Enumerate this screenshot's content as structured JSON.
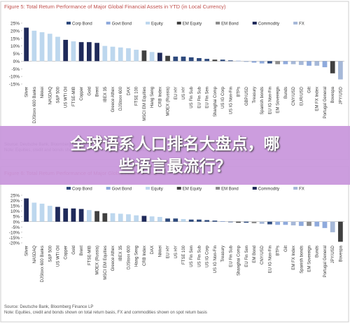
{
  "chart_data": [
    {
      "type": "bar",
      "title": "Figure 5: Total Return Performance of Major Global Financial Assets in YTD (in Local Currency)",
      "legend": [
        {
          "name": "Corp Bond",
          "color": "#2e4a7d"
        },
        {
          "name": "Govt Bond",
          "color": "#8faadc"
        },
        {
          "name": "Equity",
          "color": "#bdd7ee"
        },
        {
          "name": "EM Equity",
          "color": "#404040"
        },
        {
          "name": "EM Bond",
          "color": "#8c8c8c"
        },
        {
          "name": "Commodity",
          "color": "#1f2a5a"
        },
        {
          "name": "FX",
          "color": "#a6b8d8"
        }
      ],
      "categories": [
        "Silver",
        "DJStoxx 600 Banks",
        "Nikkei",
        "NASDAQ",
        "S&P 500",
        "US WTI Oil",
        "FTSE-MIB",
        "Copper",
        "Gold",
        "Brent",
        "IBEX 35",
        "Greece Athex",
        "DJStoxx 600",
        "DAX",
        "FTSE 100",
        "MSCI EM Equities",
        "Hang Seng",
        "CRB Index",
        "MOEX (Russia)",
        "EU HY",
        "US HY",
        "US Fin Sub",
        "EU Fin Sub",
        "EU Fin Sen",
        "Shanghai Comp",
        "US IG Corp",
        "US IG Non-Fin",
        "BTPs",
        "GBP/USD",
        "Treasury",
        "Spanish bonds",
        "EU IG Non-Fin",
        "EM Sovereign",
        "Bunds",
        "CNY/USD",
        "EUR/USD",
        "Gilt",
        "EM FX Index",
        "Portugal General",
        "Bovespa",
        "JPY/USD"
      ],
      "values": [
        22,
        20,
        19,
        18,
        16,
        14,
        13,
        12.5,
        12.5,
        12,
        10,
        9.5,
        9,
        8.5,
        7.5,
        7,
        6,
        5.5,
        3.5,
        3,
        3,
        2.5,
        2,
        1.5,
        1,
        1,
        0.5,
        0.3,
        -0.5,
        -1,
        -1.5,
        -1.5,
        -2,
        -2,
        -2,
        -2.5,
        -3,
        -3,
        -4,
        -8,
        -12
      ],
      "colors": [
        "#1f2a5a",
        "#bdd7ee",
        "#bdd7ee",
        "#bdd7ee",
        "#bdd7ee",
        "#1f2a5a",
        "#bdd7ee",
        "#1f2a5a",
        "#1f2a5a",
        "#1f2a5a",
        "#bdd7ee",
        "#bdd7ee",
        "#bdd7ee",
        "#bdd7ee",
        "#bdd7ee",
        "#404040",
        "#bdd7ee",
        "#1f2a5a",
        "#404040",
        "#2e4a7d",
        "#2e4a7d",
        "#2e4a7d",
        "#2e4a7d",
        "#2e4a7d",
        "#404040",
        "#2e4a7d",
        "#2e4a7d",
        "#8faadc",
        "#a6b8d8",
        "#8faadc",
        "#8faadc",
        "#2e4a7d",
        "#8c8c8c",
        "#8faadc",
        "#a6b8d8",
        "#a6b8d8",
        "#8faadc",
        "#a6b8d8",
        "#8faadc",
        "#404040",
        "#a6b8d8"
      ],
      "ylim": [
        -15,
        25
      ],
      "yticks": [
        {
          "value": 25,
          "label": "25%"
        },
        {
          "value": 20,
          "label": "20%"
        },
        {
          "value": 15,
          "label": "15%"
        },
        {
          "value": 10,
          "label": "10%"
        },
        {
          "value": 5,
          "label": "5%"
        },
        {
          "value": 0,
          "label": "0%"
        },
        {
          "value": -5,
          "label": "-5%"
        },
        {
          "value": -10,
          "label": "-10%"
        },
        {
          "value": -15,
          "label": "-15%"
        }
      ],
      "source": "Source: Deutsche Bank, Bloomberg Finance LP",
      "note": "Note: Equities, credit and bonds shown on total return basis, FX and commodities shown on spot return basis"
    },
    {
      "type": "bar",
      "title": "Figure 6: Total Return Performance of Major Global Financial Assets in YTD (in USD)",
      "legend": [
        {
          "name": "Corp Bond",
          "color": "#2e4a7d"
        },
        {
          "name": "Govt Bond",
          "color": "#8faadc"
        },
        {
          "name": "Equity",
          "color": "#bdd7ee"
        },
        {
          "name": "EM Equity",
          "color": "#404040"
        },
        {
          "name": "EM Bond",
          "color": "#8c8c8c"
        },
        {
          "name": "Commodity",
          "color": "#1f2a5a"
        },
        {
          "name": "FX",
          "color": "#a6b8d8"
        }
      ],
      "categories": [
        "Silver",
        "NASDAQ",
        "DJStoxx 600 Banks",
        "S&P 500",
        "US WTI Oil",
        "Copper",
        "Gold",
        "Brent",
        "FTSE-MIB",
        "MOEX (Russia)",
        "MSCI EM Equities",
        "Greece Athex",
        "IBEX 35",
        "DJStoxx 600",
        "Hang Seng",
        "CRB Index",
        "DAX",
        "Nikkei",
        "EU HY",
        "US HY",
        "FTSE 100",
        "US Fin Sen",
        "US Fin Sub",
        "US IG Corp",
        "US IG Non-Fin",
        "Treasury",
        "EU Fin Sub",
        "Shanghai Comp",
        "EU Fin Sen",
        "EM Bond",
        "CNY/USD",
        "EU IG Non-Fin",
        "BTPs",
        "Gilt",
        "EM FX Index",
        "Spanish bonds",
        "EM Sovereign",
        "Bunds",
        "Portugal General",
        "JPY/USD",
        "Bovespa"
      ],
      "values": [
        22,
        18,
        17,
        15,
        14,
        12.5,
        12.5,
        12,
        11,
        10,
        8,
        8,
        7.5,
        7,
        6,
        5.5,
        5,
        4.5,
        3,
        3,
        2.5,
        2,
        2,
        1.5,
        1,
        0.5,
        -0.5,
        -1,
        -1,
        -1.5,
        -2,
        -2.5,
        -3,
        -3,
        -3.5,
        -4,
        -4,
        -4.5,
        -6,
        -10,
        -19
      ],
      "colors": [
        "#1f2a5a",
        "#bdd7ee",
        "#bdd7ee",
        "#bdd7ee",
        "#1f2a5a",
        "#1f2a5a",
        "#1f2a5a",
        "#1f2a5a",
        "#bdd7ee",
        "#404040",
        "#404040",
        "#bdd7ee",
        "#bdd7ee",
        "#bdd7ee",
        "#bdd7ee",
        "#1f2a5a",
        "#bdd7ee",
        "#bdd7ee",
        "#2e4a7d",
        "#2e4a7d",
        "#bdd7ee",
        "#2e4a7d",
        "#2e4a7d",
        "#2e4a7d",
        "#2e4a7d",
        "#8faadc",
        "#2e4a7d",
        "#404040",
        "#2e4a7d",
        "#8c8c8c",
        "#a6b8d8",
        "#2e4a7d",
        "#8faadc",
        "#8faadc",
        "#a6b8d8",
        "#8faadc",
        "#8c8c8c",
        "#8faadc",
        "#8faadc",
        "#a6b8d8",
        "#404040"
      ],
      "ylim": [
        -20,
        25
      ],
      "yticks": [
        {
          "value": 25,
          "label": "25%"
        },
        {
          "value": 20,
          "label": "20%"
        },
        {
          "value": 15,
          "label": "15%"
        },
        {
          "value": 10,
          "label": "10%"
        },
        {
          "value": 5,
          "label": "5%"
        },
        {
          "value": 0,
          "label": "0%"
        },
        {
          "value": -5,
          "label": "-5%"
        },
        {
          "value": -10,
          "label": "-10%"
        },
        {
          "value": -15,
          "label": "-15%"
        },
        {
          "value": -20,
          "label": "-20%"
        }
      ],
      "source": "Source: Deutsche Bank, Bloomberg Finance LP",
      "note": "Note: Equities, credit and bonds shown on total return basis, FX and commodities shown on spot return basis"
    }
  ],
  "banner": {
    "line1": "全球语系人口排名大盘点，哪",
    "line2": "些语言最流行？"
  }
}
